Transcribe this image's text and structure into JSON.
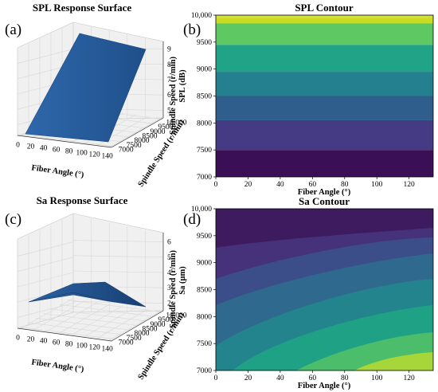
{
  "panels": {
    "a": {
      "label": "(a)"
    },
    "b": {
      "label": "(b)"
    },
    "c": {
      "label": "(c)"
    },
    "d": {
      "label": "(d)"
    }
  },
  "chart_data": [
    {
      "id": "a",
      "type": "surface",
      "title": "SPL Response Surface",
      "xlabel": "Fiber Angle (°)",
      "ylabel": "Spindle Speed (r/min)",
      "zlabel": "SPL (dB)",
      "xticks": [
        "0",
        "20",
        "40",
        "60",
        "80",
        "100",
        "120",
        "140"
      ],
      "yticks": [
        "7000",
        "7500",
        "8000",
        "8500",
        "9000",
        "9500",
        "10,000"
      ],
      "zticks": [
        "5",
        "6",
        "7",
        "8",
        "9"
      ],
      "xlim": [
        0,
        140
      ],
      "ylim": [
        7000,
        10000
      ],
      "zlim": [
        4.5,
        9.5
      ],
      "surface": {
        "color": "#2a5f9e",
        "spl_at_7000": 4.6,
        "spl_at_10000": 9.3
      }
    },
    {
      "id": "b",
      "type": "contour",
      "title": "SPL Contour",
      "xlabel": "Fiber Angle (°)",
      "ylabel": "Spindle Speed (r/min)",
      "xticks": [
        0,
        20,
        40,
        60,
        80,
        100,
        120
      ],
      "yticks": [
        7000,
        7500,
        8000,
        8500,
        9000,
        9500,
        10000
      ],
      "ytick_labels": [
        "7000",
        "7500",
        "8000",
        "8500",
        "9000",
        "9500",
        "10,000"
      ],
      "xlim": [
        0,
        135
      ],
      "ylim": [
        7000,
        10000
      ],
      "bands": [
        {
          "from": 7000,
          "to": 7500,
          "color": "#3b0f56"
        },
        {
          "from": 7500,
          "to": 8050,
          "color": "#453a84"
        },
        {
          "from": 8050,
          "to": 8500,
          "color": "#2f5d8c"
        },
        {
          "from": 8500,
          "to": 8950,
          "color": "#24808e"
        },
        {
          "from": 8950,
          "to": 9450,
          "color": "#20a386"
        },
        {
          "from": 9450,
          "to": 9850,
          "color": "#5ec962"
        },
        {
          "from": 9850,
          "to": 10000,
          "color": "#c8dc26"
        }
      ]
    },
    {
      "id": "c",
      "type": "surface",
      "title": "Sa Response Surface",
      "xlabel": "Fiber Angle (°)",
      "ylabel": "Spindle Speed (r/min)",
      "zlabel": "Sa (μm)",
      "xticks": [
        "0",
        "20",
        "40",
        "60",
        "80",
        "100",
        "120",
        "140"
      ],
      "yticks": [
        "7000",
        "7500",
        "8000",
        "8500",
        "9000",
        "9500",
        "10,000"
      ],
      "zticks": [
        "2",
        "3",
        "4",
        "5",
        "6"
      ],
      "xlim": [
        0,
        140
      ],
      "ylim": [
        7000,
        10000
      ],
      "zlim": [
        1,
        7
      ],
      "surface": {
        "color": "#2a5f9e",
        "sa_min": 1.6,
        "sa_max": 3.6
      }
    },
    {
      "id": "d",
      "type": "contour",
      "title": "Sa Contour",
      "xlabel": "Fiber Angle (°)",
      "ylabel": "Spindle Speed (r/min)",
      "xticks": [
        0,
        20,
        40,
        60,
        80,
        100,
        120
      ],
      "yticks": [
        7000,
        7500,
        8000,
        8500,
        9000,
        9500,
        10000
      ],
      "ytick_labels": [
        "7000",
        "7500",
        "8000",
        "8500",
        "9000",
        "9500",
        "10,000"
      ],
      "xlim": [
        0,
        135
      ],
      "ylim": [
        7000,
        10000
      ],
      "colors": [
        "#3e1a5e",
        "#45327a",
        "#3b4e8a",
        "#2f6a8e",
        "#24848d",
        "#1fa186",
        "#4bbd6b",
        "#a6d63a"
      ]
    }
  ]
}
